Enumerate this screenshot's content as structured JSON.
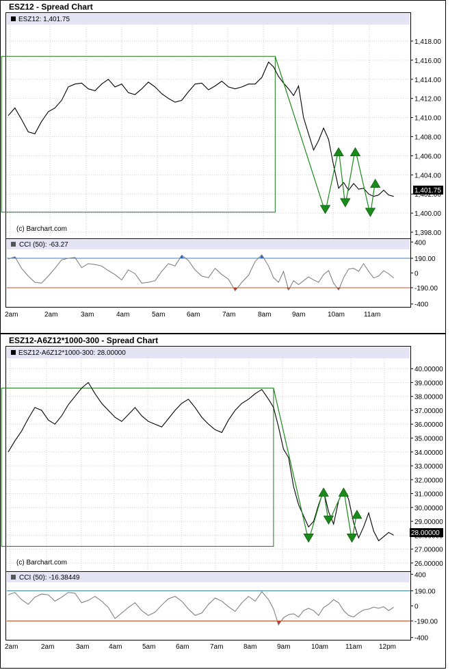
{
  "colors": {
    "price_line": "#000000",
    "cci_line": "#777777",
    "upper_band": "#3a7fc0",
    "lower_band": "#d04a2a",
    "cci_pos_fill": "#2266cc",
    "cci_neg_fill": "#cc3311",
    "pattern": "#1a8a1a",
    "legend_bg": "#e4e4f4",
    "last_label_bg": "#000000"
  },
  "icons": {
    "legend_marker": "square-marker-icon",
    "pattern_arrow": "triangle-arrow-icon"
  },
  "time_labels": [
    "2am",
    "2am",
    "3am",
    "4am",
    "5am",
    "6am",
    "7am",
    "8am",
    "9am",
    "10am",
    "11am",
    "12pm"
  ],
  "chart_data": [
    {
      "type": "line",
      "title": "ESZ12 - Spread Chart",
      "legend": "ESZ12: 1,401.75",
      "credit": "(c) Barchart.com",
      "last_value_label": "1,401.75",
      "ylim": [
        1397.5,
        1419.5
      ],
      "y_ticks": [
        "1,398.00",
        "1,400.00",
        "1,402.00",
        "1,404.00",
        "1,406.00",
        "1,408.00",
        "1,410.00",
        "1,412.00",
        "1,414.00",
        "1,416.00",
        "1,418.00"
      ],
      "x_ticks": [
        "2am",
        "2am",
        "3am",
        "4am",
        "5am",
        "6am",
        "7am",
        "8am",
        "9am",
        "10am",
        "11am"
      ],
      "xlim": [
        0,
        11.6
      ],
      "series": [
        {
          "name": "ESZ12",
          "x": [
            0,
            0.2,
            0.4,
            0.6,
            0.8,
            1.0,
            1.2,
            1.4,
            1.6,
            1.8,
            2.0,
            2.2,
            2.4,
            2.6,
            2.8,
            3.0,
            3.2,
            3.4,
            3.6,
            3.8,
            4.0,
            4.2,
            4.4,
            4.6,
            4.8,
            5.0,
            5.2,
            5.4,
            5.6,
            5.8,
            6.0,
            6.2,
            6.4,
            6.6,
            6.8,
            7.0,
            7.2,
            7.4,
            7.6,
            7.8,
            7.95,
            8.1,
            8.25,
            8.4,
            8.55,
            8.7,
            8.85,
            9.0,
            9.15,
            9.3,
            9.45,
            9.6,
            9.75,
            9.9,
            10.05,
            10.2,
            10.35,
            10.5,
            10.65,
            10.8,
            10.95,
            11.1,
            11.25,
            11.4,
            11.55
          ],
          "values": [
            1410.2,
            1411.0,
            1409.8,
            1408.5,
            1408.3,
            1409.6,
            1410.6,
            1411.0,
            1411.8,
            1413.2,
            1413.5,
            1413.6,
            1413.0,
            1412.8,
            1413.5,
            1414.0,
            1413.2,
            1413.5,
            1412.6,
            1412.4,
            1413.0,
            1413.7,
            1413.2,
            1412.5,
            1412.0,
            1411.6,
            1411.8,
            1412.7,
            1413.5,
            1413.6,
            1412.9,
            1413.3,
            1413.8,
            1413.2,
            1413.0,
            1413.2,
            1413.5,
            1413.5,
            1414.2,
            1415.8,
            1415.3,
            1414.3,
            1413.6,
            1413.0,
            1412.3,
            1413.3,
            1410.0,
            1408.3,
            1406.6,
            1407.6,
            1408.9,
            1407.7,
            1405.0,
            1402.6,
            1403.2,
            1402.4,
            1403.1,
            1402.5,
            1402.6,
            1402.0,
            1401.75,
            1401.9,
            1402.4,
            1401.9,
            1401.75
          ]
        }
      ],
      "pattern_points": [
        {
          "x": 8.0,
          "y": 1416.4
        },
        {
          "x": 9.5,
          "y": 1400.1
        },
        {
          "x": 9.9,
          "y": 1406.7
        },
        {
          "x": 10.1,
          "y": 1400.8
        },
        {
          "x": 10.4,
          "y": 1406.7
        },
        {
          "x": 10.85,
          "y": 1399.8
        },
        {
          "x": 11.0,
          "y": 1403.4
        }
      ],
      "pattern_arrows": [
        {
          "x": 9.5,
          "y": 1400.1,
          "dir": "down"
        },
        {
          "x": 9.9,
          "y": 1406.7,
          "dir": "up"
        },
        {
          "x": 10.1,
          "y": 1400.8,
          "dir": "down"
        },
        {
          "x": 10.4,
          "y": 1406.7,
          "dir": "up"
        },
        {
          "x": 10.85,
          "y": 1399.8,
          "dir": "down"
        },
        {
          "x": 11.0,
          "y": 1403.4,
          "dir": "up"
        }
      ],
      "pattern_box": {
        "x0": -0.2,
        "x1": 8.0,
        "y0": 1400.1,
        "y1": 1416.4
      },
      "cci": {
        "legend": "CCI (50): -63.27",
        "ylim": [
          -420,
          420
        ],
        "y_ticks": [
          "400",
          "190.00",
          "0",
          "-190.00",
          "-400"
        ],
        "upper": 190,
        "lower": -190,
        "x": [
          0,
          0.2,
          0.4,
          0.6,
          0.8,
          1.0,
          1.2,
          1.4,
          1.6,
          1.8,
          2.0,
          2.2,
          2.4,
          2.6,
          2.8,
          3.0,
          3.2,
          3.4,
          3.6,
          3.8,
          4.0,
          4.2,
          4.4,
          4.6,
          4.8,
          5.0,
          5.2,
          5.4,
          5.6,
          5.8,
          6.0,
          6.2,
          6.4,
          6.6,
          6.8,
          7.0,
          7.2,
          7.4,
          7.6,
          7.8,
          7.95,
          8.1,
          8.25,
          8.4,
          8.55,
          8.7,
          8.85,
          9.0,
          9.15,
          9.3,
          9.45,
          9.6,
          9.75,
          9.9,
          10.05,
          10.2,
          10.35,
          10.5,
          10.65,
          10.8,
          10.95,
          11.1,
          11.25,
          11.4,
          11.55
        ],
        "values": [
          180,
          210,
          60,
          -40,
          -120,
          -130,
          -40,
          60,
          170,
          190,
          200,
          70,
          120,
          110,
          90,
          30,
          -20,
          -90,
          40,
          -10,
          -130,
          -120,
          -100,
          20,
          120,
          90,
          230,
          160,
          40,
          -40,
          -60,
          60,
          -20,
          -80,
          -230,
          -120,
          -30,
          150,
          235,
          90,
          -60,
          -120,
          20,
          -220,
          -100,
          -150,
          -100,
          -50,
          -90,
          -120,
          -20,
          30,
          -130,
          -220,
          -60,
          50,
          60,
          20,
          120,
          20,
          -63.27,
          -40,
          30,
          -10,
          -63.27
        ]
      }
    },
    {
      "type": "line",
      "title": "ESZ12-A6Z12*1000-300 - Spread Chart",
      "legend": "ESZ12-A6Z12*1000-300: 28.00000",
      "credit": "(c) Barchart.com",
      "last_value_label": "28.00000",
      "ylim": [
        25.5,
        40.7
      ],
      "y_ticks": [
        "26.00000",
        "27.00000",
        "28.00000",
        "29.00000",
        "30.00000",
        "31.00000",
        "32.00000",
        "33.00000",
        "34.00000",
        "35.00000",
        "36.00000",
        "37.00000",
        "38.00000",
        "39.00000",
        "40.00000"
      ],
      "x_ticks": [
        "2am",
        "2am",
        "3am",
        "4am",
        "5am",
        "6am",
        "7am",
        "8am",
        "9am",
        "10am",
        "11am",
        "12pm"
      ],
      "xlim": [
        0,
        11.6
      ],
      "series": [
        {
          "name": "ESZ12-A6Z12*1000-300",
          "x": [
            0,
            0.2,
            0.4,
            0.6,
            0.8,
            1.0,
            1.2,
            1.4,
            1.6,
            1.8,
            2.0,
            2.2,
            2.4,
            2.6,
            2.8,
            3.0,
            3.2,
            3.4,
            3.6,
            3.8,
            4.0,
            4.2,
            4.4,
            4.6,
            4.8,
            5.0,
            5.2,
            5.4,
            5.6,
            5.8,
            6.0,
            6.2,
            6.4,
            6.6,
            6.8,
            7.0,
            7.2,
            7.4,
            7.6,
            7.8,
            7.95,
            8.1,
            8.25,
            8.4,
            8.55,
            8.7,
            8.85,
            9.0,
            9.15,
            9.3,
            9.45,
            9.6,
            9.75,
            9.9,
            10.05,
            10.2,
            10.35,
            10.5,
            10.65,
            10.8,
            10.95,
            11.1,
            11.25,
            11.4,
            11.55
          ],
          "values": [
            34.0,
            34.8,
            35.5,
            36.4,
            37.2,
            37.0,
            36.3,
            36.0,
            36.6,
            37.4,
            38.0,
            38.6,
            39.0,
            38.2,
            37.5,
            37.0,
            36.5,
            36.2,
            36.7,
            37.2,
            36.6,
            36.2,
            36.0,
            35.8,
            36.4,
            37.0,
            37.5,
            37.8,
            37.2,
            36.5,
            36.0,
            35.6,
            35.4,
            36.3,
            37.0,
            37.5,
            37.8,
            38.2,
            38.5,
            37.8,
            37.2,
            35.8,
            34.2,
            33.6,
            31.5,
            30.2,
            29.4,
            28.6,
            29.0,
            30.2,
            31.2,
            29.7,
            28.8,
            30.5,
            31.3,
            30.6,
            28.9,
            27.8,
            28.6,
            29.6,
            28.3,
            27.6,
            27.9,
            28.2,
            28.0
          ]
        }
      ],
      "pattern_points": [
        {
          "x": 7.95,
          "y": 38.6
        },
        {
          "x": 9.0,
          "y": 27.6
        },
        {
          "x": 9.45,
          "y": 31.3
        },
        {
          "x": 9.6,
          "y": 28.9
        },
        {
          "x": 10.05,
          "y": 31.3
        },
        {
          "x": 10.3,
          "y": 27.6
        },
        {
          "x": 10.45,
          "y": 29.7
        }
      ],
      "pattern_arrows": [
        {
          "x": 9.0,
          "y": 27.6,
          "dir": "down"
        },
        {
          "x": 9.45,
          "y": 31.3,
          "dir": "up"
        },
        {
          "x": 9.6,
          "y": 28.9,
          "dir": "down"
        },
        {
          "x": 10.05,
          "y": 31.3,
          "dir": "up"
        },
        {
          "x": 10.3,
          "y": 27.6,
          "dir": "down"
        },
        {
          "x": 10.45,
          "y": 29.7,
          "dir": "up"
        }
      ],
      "pattern_box": {
        "x0": -0.2,
        "x1": 7.95,
        "y0": 27.2,
        "y1": 38.6
      },
      "cci": {
        "legend": "CCI (50): -16.38449",
        "ylim": [
          -420,
          420
        ],
        "y_ticks": [
          "400",
          "190.00",
          "0",
          "-190.00",
          "-400"
        ],
        "upper": 190,
        "lower": -190,
        "x": [
          0,
          0.2,
          0.4,
          0.6,
          0.8,
          1.0,
          1.2,
          1.4,
          1.6,
          1.8,
          2.0,
          2.2,
          2.4,
          2.6,
          2.8,
          3.0,
          3.2,
          3.4,
          3.6,
          3.8,
          4.0,
          4.2,
          4.4,
          4.6,
          4.8,
          5.0,
          5.2,
          5.4,
          5.6,
          5.8,
          6.0,
          6.2,
          6.4,
          6.6,
          6.8,
          7.0,
          7.2,
          7.4,
          7.6,
          7.8,
          7.95,
          8.1,
          8.25,
          8.4,
          8.55,
          8.7,
          8.85,
          9.0,
          9.15,
          9.3,
          9.45,
          9.6,
          9.75,
          9.9,
          10.05,
          10.2,
          10.35,
          10.5,
          10.65,
          10.8,
          10.95,
          11.1,
          11.25,
          11.4,
          11.55
        ],
        "values": [
          140,
          170,
          80,
          20,
          110,
          150,
          140,
          60,
          110,
          170,
          160,
          40,
          70,
          120,
          60,
          -20,
          -160,
          -90,
          -20,
          40,
          -60,
          -120,
          -80,
          10,
          90,
          120,
          60,
          -40,
          -120,
          -90,
          20,
          100,
          60,
          -10,
          -70,
          40,
          120,
          60,
          180,
          80,
          -40,
          -240,
          -150,
          -110,
          -100,
          -140,
          -60,
          -30,
          -60,
          -120,
          -20,
          20,
          80,
          40,
          -60,
          -120,
          -140,
          -90,
          -50,
          -40,
          -16.38,
          -30,
          -10,
          -60,
          -16.38
        ]
      }
    }
  ]
}
